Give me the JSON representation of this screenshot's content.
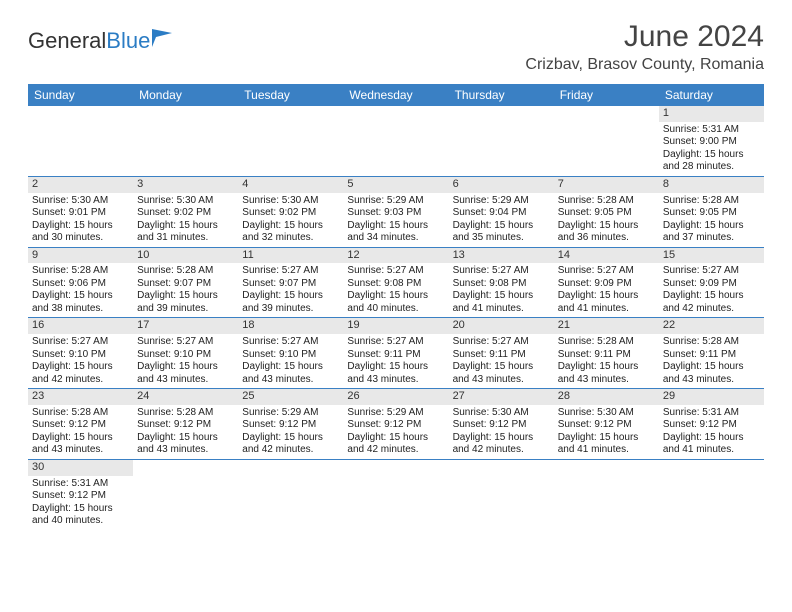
{
  "logo": {
    "general": "General",
    "blue": "Blue"
  },
  "title": "June 2024",
  "location": "Crizbav, Brasov County, Romania",
  "colors": {
    "header_bg": "#3a80c4",
    "header_fg": "#ffffff",
    "daynum_bg": "#e8e8e8",
    "row_border": "#3a80c4",
    "logo_blue": "#2b7cc4",
    "text": "#333333"
  },
  "weekdays": [
    "Sunday",
    "Monday",
    "Tuesday",
    "Wednesday",
    "Thursday",
    "Friday",
    "Saturday"
  ],
  "grid": [
    [
      null,
      null,
      null,
      null,
      null,
      null,
      {
        "n": "1",
        "sr": "5:31 AM",
        "ss": "9:00 PM",
        "dl": "15 hours and 28 minutes."
      }
    ],
    [
      {
        "n": "2",
        "sr": "5:30 AM",
        "ss": "9:01 PM",
        "dl": "15 hours and 30 minutes."
      },
      {
        "n": "3",
        "sr": "5:30 AM",
        "ss": "9:02 PM",
        "dl": "15 hours and 31 minutes."
      },
      {
        "n": "4",
        "sr": "5:30 AM",
        "ss": "9:02 PM",
        "dl": "15 hours and 32 minutes."
      },
      {
        "n": "5",
        "sr": "5:29 AM",
        "ss": "9:03 PM",
        "dl": "15 hours and 34 minutes."
      },
      {
        "n": "6",
        "sr": "5:29 AM",
        "ss": "9:04 PM",
        "dl": "15 hours and 35 minutes."
      },
      {
        "n": "7",
        "sr": "5:28 AM",
        "ss": "9:05 PM",
        "dl": "15 hours and 36 minutes."
      },
      {
        "n": "8",
        "sr": "5:28 AM",
        "ss": "9:05 PM",
        "dl": "15 hours and 37 minutes."
      }
    ],
    [
      {
        "n": "9",
        "sr": "5:28 AM",
        "ss": "9:06 PM",
        "dl": "15 hours and 38 minutes."
      },
      {
        "n": "10",
        "sr": "5:28 AM",
        "ss": "9:07 PM",
        "dl": "15 hours and 39 minutes."
      },
      {
        "n": "11",
        "sr": "5:27 AM",
        "ss": "9:07 PM",
        "dl": "15 hours and 39 minutes."
      },
      {
        "n": "12",
        "sr": "5:27 AM",
        "ss": "9:08 PM",
        "dl": "15 hours and 40 minutes."
      },
      {
        "n": "13",
        "sr": "5:27 AM",
        "ss": "9:08 PM",
        "dl": "15 hours and 41 minutes."
      },
      {
        "n": "14",
        "sr": "5:27 AM",
        "ss": "9:09 PM",
        "dl": "15 hours and 41 minutes."
      },
      {
        "n": "15",
        "sr": "5:27 AM",
        "ss": "9:09 PM",
        "dl": "15 hours and 42 minutes."
      }
    ],
    [
      {
        "n": "16",
        "sr": "5:27 AM",
        "ss": "9:10 PM",
        "dl": "15 hours and 42 minutes."
      },
      {
        "n": "17",
        "sr": "5:27 AM",
        "ss": "9:10 PM",
        "dl": "15 hours and 43 minutes."
      },
      {
        "n": "18",
        "sr": "5:27 AM",
        "ss": "9:10 PM",
        "dl": "15 hours and 43 minutes."
      },
      {
        "n": "19",
        "sr": "5:27 AM",
        "ss": "9:11 PM",
        "dl": "15 hours and 43 minutes."
      },
      {
        "n": "20",
        "sr": "5:27 AM",
        "ss": "9:11 PM",
        "dl": "15 hours and 43 minutes."
      },
      {
        "n": "21",
        "sr": "5:28 AM",
        "ss": "9:11 PM",
        "dl": "15 hours and 43 minutes."
      },
      {
        "n": "22",
        "sr": "5:28 AM",
        "ss": "9:11 PM",
        "dl": "15 hours and 43 minutes."
      }
    ],
    [
      {
        "n": "23",
        "sr": "5:28 AM",
        "ss": "9:12 PM",
        "dl": "15 hours and 43 minutes."
      },
      {
        "n": "24",
        "sr": "5:28 AM",
        "ss": "9:12 PM",
        "dl": "15 hours and 43 minutes."
      },
      {
        "n": "25",
        "sr": "5:29 AM",
        "ss": "9:12 PM",
        "dl": "15 hours and 42 minutes."
      },
      {
        "n": "26",
        "sr": "5:29 AM",
        "ss": "9:12 PM",
        "dl": "15 hours and 42 minutes."
      },
      {
        "n": "27",
        "sr": "5:30 AM",
        "ss": "9:12 PM",
        "dl": "15 hours and 42 minutes."
      },
      {
        "n": "28",
        "sr": "5:30 AM",
        "ss": "9:12 PM",
        "dl": "15 hours and 41 minutes."
      },
      {
        "n": "29",
        "sr": "5:31 AM",
        "ss": "9:12 PM",
        "dl": "15 hours and 41 minutes."
      }
    ],
    [
      {
        "n": "30",
        "sr": "5:31 AM",
        "ss": "9:12 PM",
        "dl": "15 hours and 40 minutes."
      },
      null,
      null,
      null,
      null,
      null,
      null
    ]
  ],
  "labels": {
    "sunrise": "Sunrise: ",
    "sunset": "Sunset: ",
    "daylight": "Daylight: "
  }
}
